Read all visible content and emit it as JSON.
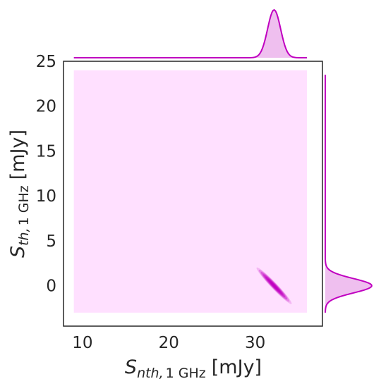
{
  "chart_data": {
    "type": "joint-kde",
    "color": "#c000c0",
    "fill_color": "#ffe0ff",
    "xlabel": {
      "symbol": "S",
      "subscript_italic": "nth,",
      "subscript_roman": "1 GHz",
      "unit": "[mJy]"
    },
    "ylabel": {
      "symbol": "S",
      "subscript_italic": "th,",
      "subscript_roman": "1 GHz",
      "unit": "[mJy]"
    },
    "xlim": [
      7.8,
      37.8
    ],
    "ylim": [
      -4.5,
      25
    ],
    "xticks": [
      10,
      20,
      30
    ],
    "yticks": [
      0,
      5,
      10,
      15,
      20,
      25
    ],
    "kde_region": {
      "x": [
        9,
        36
      ],
      "y": [
        -3,
        24
      ]
    },
    "posterior": {
      "x_mean": 32.2,
      "y_mean": 0.0,
      "x_sd": 0.85,
      "y_sd": 0.85,
      "correlation": -0.97
    },
    "marginal_x": {
      "mode": 32.2,
      "sd": 0.75
    },
    "marginal_y": {
      "mode": 0.0,
      "sd": 0.8
    }
  }
}
